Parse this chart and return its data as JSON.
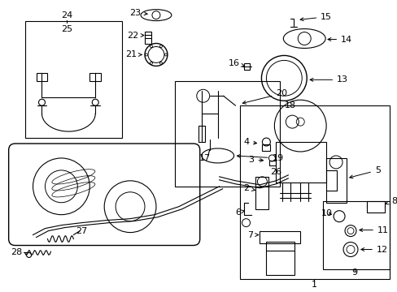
{
  "bg_color": "#ffffff",
  "line_color": "#000000",
  "font_size": 8,
  "fig_width": 4.89,
  "fig_height": 3.6,
  "dpi": 100
}
